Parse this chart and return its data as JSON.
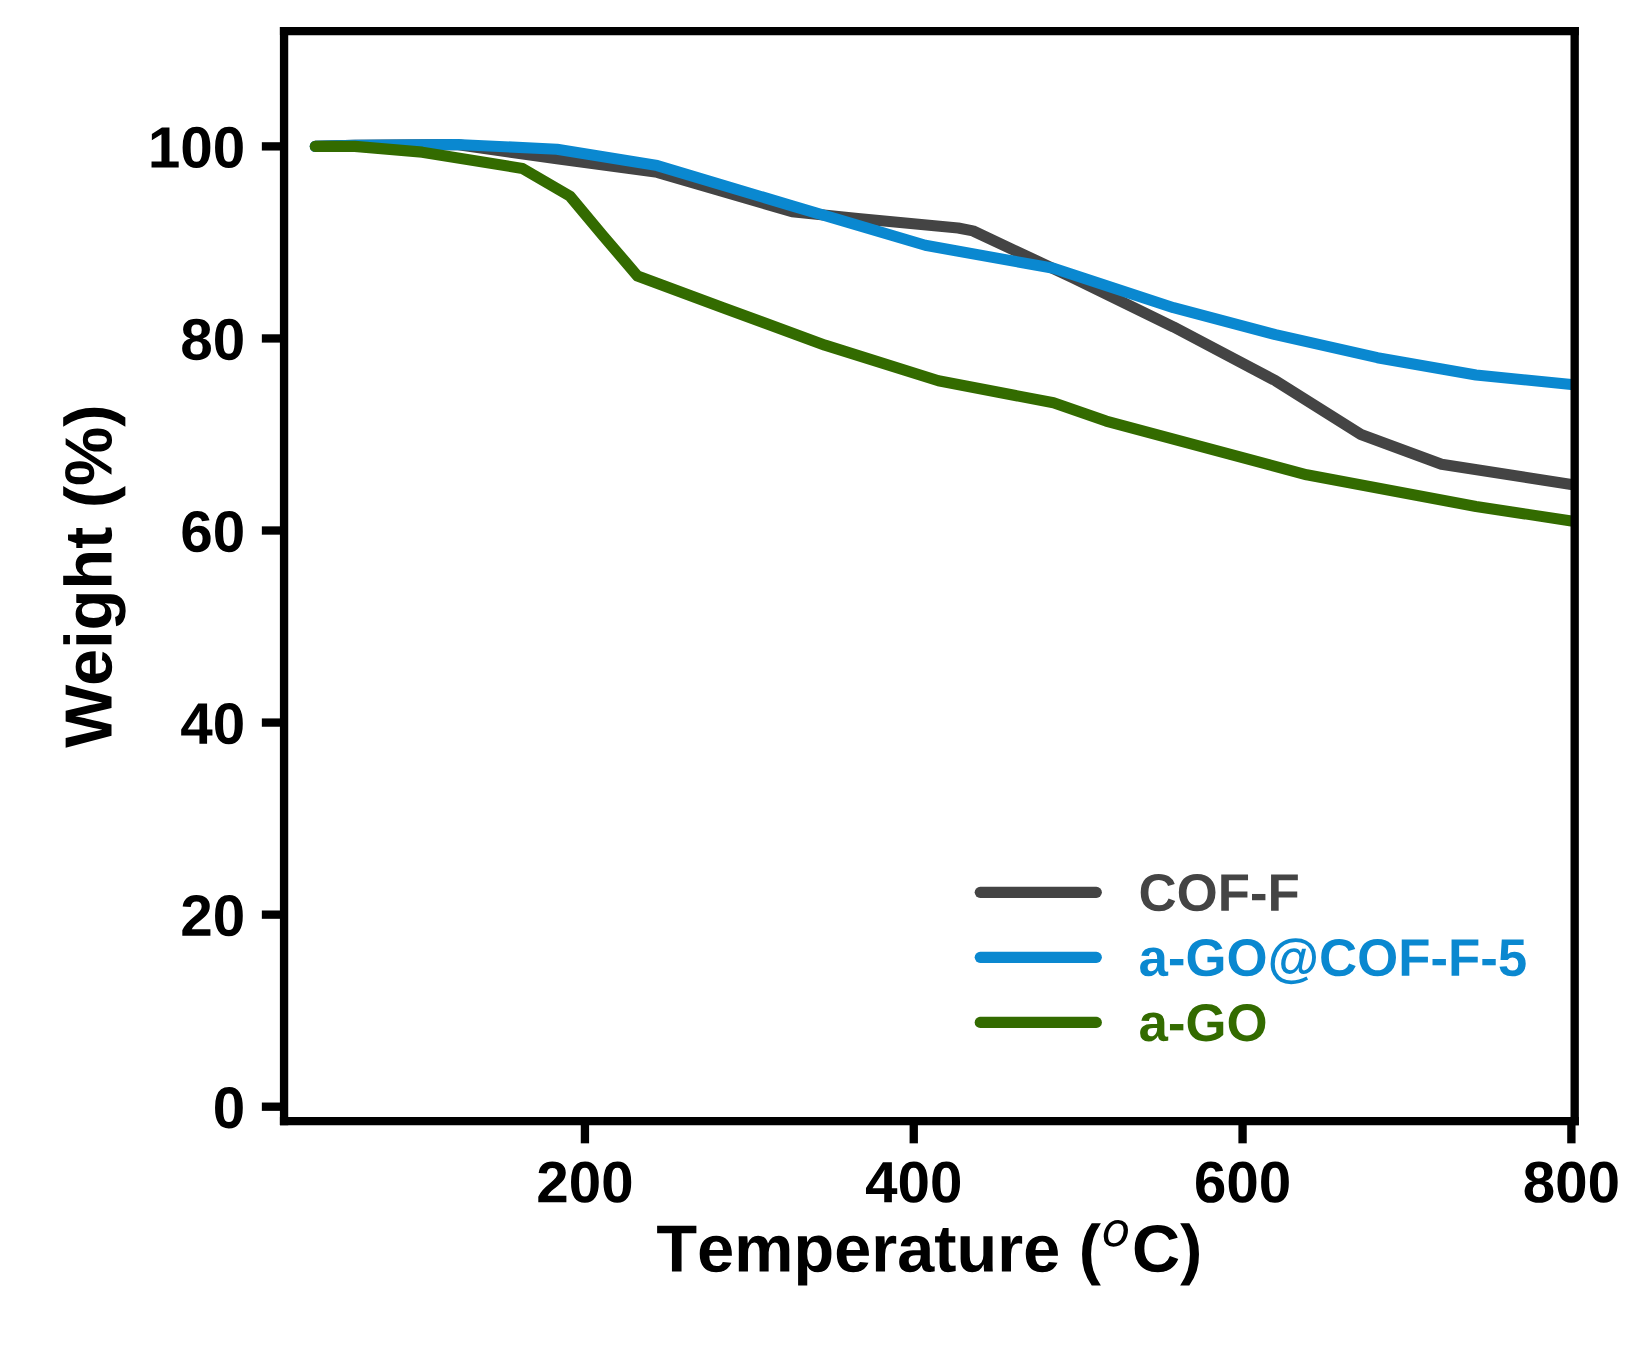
{
  "chart_data": {
    "type": "line",
    "xlabel": "Temperature ($^{o}$C)",
    "ylabel": "Weight (%)",
    "xlim": [
      17,
      802
    ],
    "ylim": [
      -1.5,
      112
    ],
    "xticks": [
      200,
      400,
      600,
      800
    ],
    "yticks": [
      0,
      20,
      40,
      60,
      80,
      100
    ],
    "grid": false,
    "legend": "bottom right",
    "line_style": "solid",
    "marker": "none",
    "series": [
      {
        "name": "COF-F",
        "color": "#444444",
        "x": [
          36,
          60,
          122,
          183,
          244,
          326,
          366,
          427,
          436,
          497,
          558,
          620,
          672,
          721,
          800
        ],
        "values": [
          100,
          100.1,
          100.2,
          98.7,
          97.3,
          93.2,
          92.5,
          91.5,
          91.2,
          86.3,
          81.2,
          75.6,
          70,
          66.9,
          64.8
        ]
      },
      {
        "name": "a-GO@COF-F-5",
        "color": "#0a88d0",
        "x": [
          36,
          60,
          122,
          183,
          244,
          326,
          407,
          485,
          558,
          620,
          682,
          742,
          800
        ],
        "values": [
          100,
          100.1,
          100.2,
          99.7,
          98,
          93.8,
          89.7,
          87.3,
          83.2,
          80.4,
          78,
          76.2,
          75.2
        ]
      },
      {
        "name": "a-GO",
        "color": "#336b00",
        "x": [
          36,
          60,
          101,
          162,
          191,
          211,
          232,
          284,
          346,
          415,
          485,
          517,
          639,
          742,
          800
        ],
        "values": [
          100,
          100,
          99.4,
          97.7,
          94.8,
          90.7,
          86.5,
          83.2,
          79.3,
          75.6,
          73.3,
          71.4,
          65.8,
          62.5,
          61
        ]
      }
    ]
  }
}
